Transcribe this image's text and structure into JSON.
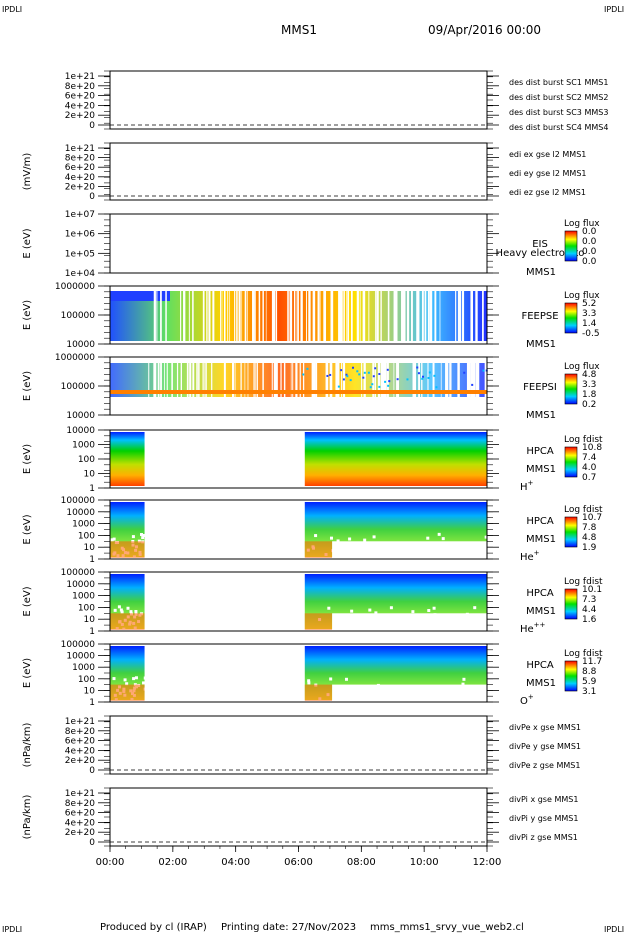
{
  "header": {
    "corner_tag": "IPDLI",
    "spacecraft": "MMS1",
    "datetime": "09/Apr/2016 00:00"
  },
  "footer": {
    "produced_by": "Produced by cl (IRAP)",
    "printing_date": "Printing date: 27/Nov/2023",
    "script_name": "mms_mms1_srvy_vue_web2.cl"
  },
  "time_axis": {
    "ticks": [
      "00:00",
      "02:00",
      "04:00",
      "06:00",
      "08:00",
      "10:00",
      "12:00"
    ]
  },
  "colors": {
    "red": "#ff0000",
    "magenta": "#ff00ff",
    "green": "#00c000",
    "blue": "#0000ff"
  },
  "chart_data": [
    {
      "type": "line",
      "ylabel": "",
      "yticks": [
        "1e+21",
        "8e+20",
        "6e+20",
        "4e+20",
        "2e+20",
        "0"
      ],
      "ylim": [
        0,
        1e+21
      ],
      "series": [
        {
          "name": "des dist burst SC1 MMS1",
          "color": "#0000ff",
          "values": [
            0
          ]
        },
        {
          "name": "des dist burst SC2 MMS2",
          "color": "#ff00ff",
          "values": [
            0
          ]
        },
        {
          "name": "des dist burst SC3 MMS3",
          "color": "#ff0000",
          "values": [
            0
          ]
        },
        {
          "name": "des dist burst SC4 MMS4",
          "color": "#00c000",
          "values": [
            0
          ]
        }
      ]
    },
    {
      "type": "line",
      "ylabel": "(mV/m)",
      "yticks": [
        "1e+21",
        "8e+20",
        "6e+20",
        "4e+20",
        "2e+20",
        "0"
      ],
      "ylim": [
        0,
        1e+21
      ],
      "series": [
        {
          "name": "edi ex gse l2 MMS1",
          "color": "#ff0000",
          "values": [
            0
          ]
        },
        {
          "name": "edi ey gse l2 MMS1",
          "color": "#00c000",
          "values": [
            0
          ]
        },
        {
          "name": "edi ez gse l2 MMS1",
          "color": "#0000ff",
          "values": [
            0
          ]
        }
      ]
    },
    {
      "type": "heatmap",
      "ylabel": "E (eV)",
      "yticks": [
        "1e+07",
        "1e+06",
        "1e+05",
        "1e+04"
      ],
      "instrument": "EIS",
      "instrument_extra": "Heavy electron to",
      "spacecraft": "MMS1",
      "colorbar_title": "Log flux",
      "colorbar_ticks": [
        "0.0",
        "0.0",
        "0.0",
        "0.0"
      ],
      "coverage": []
    },
    {
      "type": "heatmap",
      "ylabel": "E (eV)",
      "yticks": [
        "1000000",
        "100000",
        "10000"
      ],
      "instrument": "FEEPSE",
      "spacecraft": "MMS1",
      "colorbar_title": "Log flux",
      "colorbar_ticks": [
        "5.2",
        "3.3",
        "1.4",
        "-0.5"
      ],
      "coverage": [
        [
          0,
          12
        ]
      ]
    },
    {
      "type": "heatmap",
      "ylabel": "E (eV)",
      "yticks": [
        "1000000",
        "100000",
        "10000"
      ],
      "instrument": "FEEPSI",
      "spacecraft": "MMS1",
      "colorbar_title": "Log flux",
      "colorbar_ticks": [
        "4.8",
        "3.3",
        "1.8",
        "0.2"
      ],
      "coverage": [
        [
          0,
          12
        ]
      ]
    },
    {
      "type": "heatmap",
      "ylabel": "E (eV)",
      "yticks": [
        "10000",
        "1000",
        "100",
        "10",
        "1"
      ],
      "instrument": "HPCA",
      "spacecraft": "MMS1",
      "species": "H",
      "species_sup": "+",
      "colorbar_title": "Log fdist",
      "colorbar_ticks": [
        "10.8",
        "7.4",
        "4.0",
        "0.7"
      ],
      "coverage": [
        [
          0,
          1.1
        ],
        [
          6.2,
          12
        ]
      ]
    },
    {
      "type": "heatmap",
      "ylabel": "E (eV)",
      "yticks": [
        "100000",
        "10000",
        "1000",
        "100",
        "10",
        "1"
      ],
      "instrument": "HPCA",
      "spacecraft": "MMS1",
      "species": "He",
      "species_sup": "+",
      "colorbar_title": "Log fdist",
      "colorbar_ticks": [
        "10.7",
        "7.8",
        "4.8",
        "1.9"
      ],
      "coverage": [
        [
          0,
          1.1
        ],
        [
          6.2,
          12
        ]
      ]
    },
    {
      "type": "heatmap",
      "ylabel": "E (eV)",
      "yticks": [
        "100000",
        "10000",
        "1000",
        "100",
        "10",
        "1"
      ],
      "instrument": "HPCA",
      "spacecraft": "MMS1",
      "species": "He",
      "species_sup": "++",
      "colorbar_title": "Log fdist",
      "colorbar_ticks": [
        "10.1",
        "7.3",
        "4.4",
        "1.6"
      ],
      "coverage": [
        [
          0,
          1.1
        ],
        [
          6.2,
          12
        ]
      ]
    },
    {
      "type": "heatmap",
      "ylabel": "E (eV)",
      "yticks": [
        "100000",
        "10000",
        "1000",
        "100",
        "10",
        "1"
      ],
      "instrument": "HPCA",
      "spacecraft": "MMS1",
      "species": "O",
      "species_sup": "+",
      "colorbar_title": "Log fdist",
      "colorbar_ticks": [
        "11.7",
        "8.8",
        "5.9",
        "3.1"
      ],
      "coverage": [
        [
          0,
          1.1
        ],
        [
          6.2,
          12
        ]
      ]
    },
    {
      "type": "line",
      "ylabel": "(nPa/km)",
      "yticks": [
        "1e+21",
        "8e+20",
        "6e+20",
        "4e+20",
        "2e+20",
        "0"
      ],
      "ylim": [
        0,
        1e+21
      ],
      "series": [
        {
          "name": "divPe x gse MMS1",
          "color": "#ff0000",
          "values": [
            0
          ]
        },
        {
          "name": "divPe y gse MMS1",
          "color": "#00c000",
          "values": [
            0
          ]
        },
        {
          "name": "divPe z gse MMS1",
          "color": "#0000ff",
          "values": [
            0
          ]
        }
      ]
    },
    {
      "type": "line",
      "ylabel": "(nPa/km)",
      "yticks": [
        "1e+21",
        "8e+20",
        "6e+20",
        "4e+20",
        "2e+20",
        "0"
      ],
      "ylim": [
        0,
        1e+21
      ],
      "series": [
        {
          "name": "divPi x gse MMS1",
          "color": "#ff0000",
          "values": [
            0
          ]
        },
        {
          "name": "divPi y gse MMS1",
          "color": "#00c000",
          "values": [
            0
          ]
        },
        {
          "name": "divPi z gse MMS1",
          "color": "#0000ff",
          "values": [
            0
          ]
        }
      ]
    }
  ]
}
